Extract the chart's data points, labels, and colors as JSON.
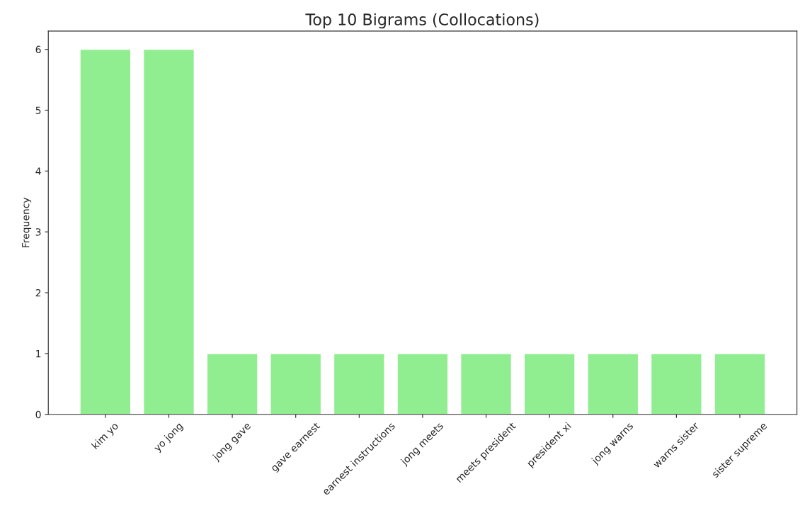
{
  "chart_data": {
    "type": "bar",
    "title": "Top 10 Bigrams (Collocations)",
    "ylabel": "Frequency",
    "categories": [
      "kim yo",
      "yo jong",
      "jong gave",
      "gave earnest",
      "earnest instructions",
      "jong meets",
      "meets president",
      "president xi",
      "jong warns",
      "warns sister",
      "sister supreme"
    ],
    "values": [
      6,
      6,
      1,
      1,
      1,
      1,
      1,
      1,
      1,
      1,
      1
    ],
    "color": "#90ee90",
    "ylim": [
      0,
      6.3
    ],
    "yticks": [
      0,
      1,
      2,
      3,
      4,
      5,
      6
    ],
    "grid": false
  }
}
